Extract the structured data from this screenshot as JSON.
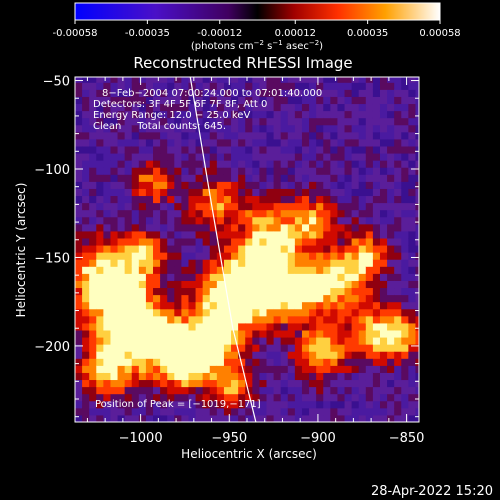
{
  "colorbar": {
    "tick_labels": [
      "-0.00058",
      "-0.00035",
      "-0.00012",
      "0.00012",
      "0.00035",
      "0.00058"
    ],
    "tick_values": [
      -0.00058,
      -0.00035,
      -0.00012,
      0.00012,
      0.00035,
      0.00058
    ],
    "range": [
      -0.00058,
      0.00058
    ],
    "units_prefix": "(photons cm",
    "units_exp1": "−2",
    "units_mid": " s",
    "units_exp2": "−1",
    "units_mid2": " asec",
    "units_exp3": "−2",
    "units_suffix": ")"
  },
  "chart_data": {
    "type": "heatmap",
    "title": "Reconstructed RHESSI Image",
    "xlabel": "Heliocentric X (arcsec)",
    "ylabel": "Heliocentric Y (arcsec)",
    "xlim": [
      -1037,
      -843
    ],
    "ylim": [
      -243,
      -48
    ],
    "x_ticks": [
      -1000,
      -950,
      -900,
      -850
    ],
    "x_tick_labels": [
      "−1000",
      "−950",
      "−900",
      "−850"
    ],
    "y_ticks": [
      -50,
      -100,
      -150,
      -200
    ],
    "y_tick_labels": [
      "−50",
      "−100",
      "−150",
      "−200"
    ],
    "annotations": [
      "8−Feb−2004 07:00:24.000 to 07:01:40.000",
      "Detectors: 3F 4F 5F 6F 7F 8F, Att 0",
      "Energy Range: 12.0 − 25.0 keV",
      "Clean     Total counts: 645."
    ],
    "peak_label": "Position of Peak = [−1019,−171]",
    "peak": [
      -1019,
      -171
    ],
    "limb_curve": [
      [
        -972,
        -48
      ],
      [
        -960,
        -120
      ],
      [
        -948,
        -190
      ],
      [
        -935,
        -243
      ]
    ],
    "grid": false,
    "legend": "none"
  },
  "footer": {
    "timestamp": "28-Apr-2022 15:20"
  }
}
